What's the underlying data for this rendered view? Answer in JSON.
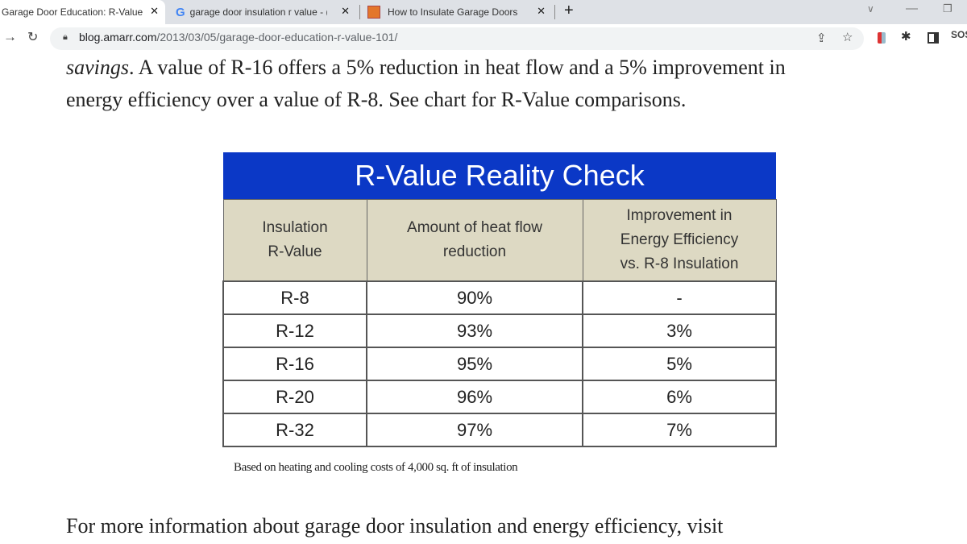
{
  "browser": {
    "tabs": [
      {
        "title": "Garage Door Education: R-Value",
        "active": true,
        "icon": "none"
      },
      {
        "title": "garage door insulation r value - (",
        "active": false,
        "icon": "google-icon"
      },
      {
        "title": "How to Insulate Garage Doors",
        "active": false,
        "icon": "home-depot-icon"
      }
    ],
    "new_tab": "+",
    "url_host": "blog.amarr.com",
    "url_path": "/2013/03/05/garage-door-education-r-value-101/",
    "extension_label": "SOS"
  },
  "article": {
    "para1_italic": "savings",
    "para1_line1": ". A value of R-16 offers a 5% reduction in heat flow and a 5% improvement in",
    "para1_line2": "energy efficiency over a value of R-8.  See chart for R-Value comparisons.",
    "para2": "For more information about garage door insulation and energy efficiency, visit"
  },
  "table": {
    "title": "R-Value Reality Check",
    "headers": [
      [
        "Insulation",
        "R-Value"
      ],
      [
        "Amount of heat flow",
        "reduction"
      ],
      [
        "Improvement in",
        "Energy Efficiency",
        "vs. R-8 Insulation"
      ]
    ],
    "rows": [
      [
        "R-8",
        "90%",
        "-"
      ],
      [
        "R-12",
        "93%",
        "3%"
      ],
      [
        "R-16",
        "95%",
        "5%"
      ],
      [
        "R-20",
        "96%",
        "6%"
      ],
      [
        "R-32",
        "97%",
        "7%"
      ]
    ],
    "caption": "Based on heating and cooling costs of 4,000 sq. ft of insulation",
    "colors": {
      "title_bg": "#0b38c6",
      "header_bg": "#ddd9c3"
    }
  }
}
